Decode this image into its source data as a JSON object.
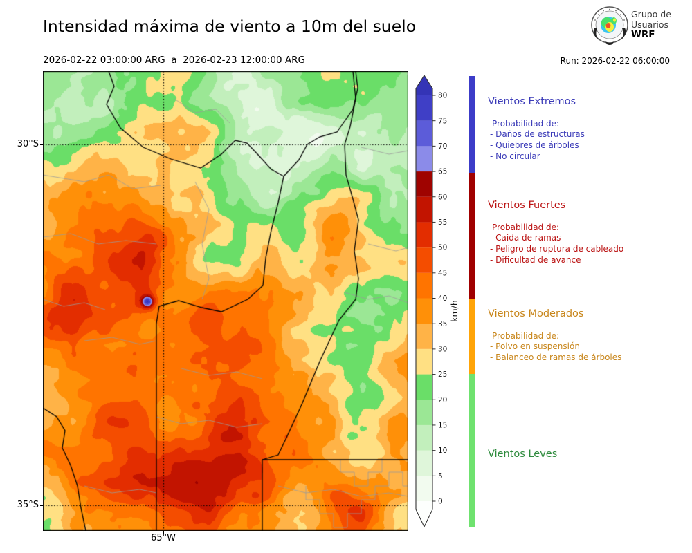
{
  "header": {
    "title": "Intensidad máxima de viento a 10m del suelo",
    "subtitle": "2026-02-22 03:00:00 ARG  a  2026-02-23 12:00:00 ARG",
    "run_label": "Run: 2026-02-22 06:00:00",
    "logo": {
      "line1": "Grupo de",
      "line2": "Usuarios",
      "line3": "WRF"
    }
  },
  "map": {
    "lat_labels": [
      "30°S",
      "35°S"
    ],
    "lon_label": "65°W"
  },
  "colorbar": {
    "unit": "km/h",
    "ticks": [
      0,
      5,
      10,
      15,
      20,
      25,
      30,
      35,
      40,
      45,
      50,
      55,
      60,
      65,
      70,
      75,
      80
    ],
    "band_colors": [
      "#F2FBEF",
      "#DFF6DA",
      "#C2EFBC",
      "#9BE795",
      "#6ADE68",
      "#FFE083",
      "#FFB347",
      "#FF9008",
      "#FF7400",
      "#F44D00",
      "#E32D00",
      "#C21400",
      "#9F0300",
      "#8B8BE9",
      "#5C5CD9",
      "#3F3FC6"
    ],
    "over_color": "#3434B6",
    "under_color": "#FDFFFD"
  },
  "legend": {
    "sections": [
      {
        "title": "Vientos Extremos",
        "text_color": "#3B3BB8",
        "bar_color": "#3C3CC8",
        "intro": "Probabilidad de:",
        "items": [
          "- Daños de estructuras",
          "- Quiebres de árboles",
          "- No circular"
        ]
      },
      {
        "title": "Vientos Fuertes",
        "text_color": "#BB1414",
        "bar_color": "#A00000",
        "intro": "Probabilidad de:",
        "items": [
          "- Caida de ramas",
          "- Peligro de ruptura de cableado",
          "- Dificultad de avance"
        ]
      },
      {
        "title": "Vientos Moderados",
        "text_color": "#C8861B",
        "bar_color": "#FFA408",
        "intro": "Probabilidad de:",
        "items": [
          "- Polvo en suspensión",
          "- Balanceo de ramas de árboles"
        ]
      },
      {
        "title": "Vientos Leves",
        "text_color": "#2E8B3D",
        "bar_color": "#6FE26F",
        "intro": "",
        "items": []
      }
    ]
  }
}
